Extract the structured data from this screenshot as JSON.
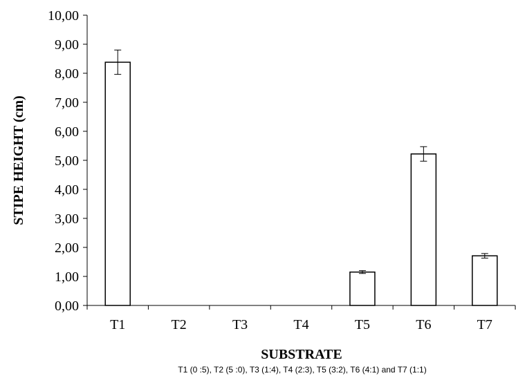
{
  "chart_data": {
    "type": "bar",
    "categories": [
      "T1",
      "T2",
      "T3",
      "T4",
      "T5",
      "T6",
      "T7"
    ],
    "values": [
      8.38,
      0,
      0,
      0,
      1.15,
      5.22,
      1.71
    ],
    "errors": [
      0.42,
      0,
      0,
      0,
      0.05,
      0.25,
      0.08
    ],
    "color": "#ffffff",
    "ylim": [
      0,
      10
    ],
    "yticks": [
      {
        "value": 0,
        "label": "0,00"
      },
      {
        "value": 1,
        "label": "1,00"
      },
      {
        "value": 2,
        "label": "2,00"
      },
      {
        "value": 3,
        "label": "3,00"
      },
      {
        "value": 4,
        "label": "4,00"
      },
      {
        "value": 5,
        "label": "5,00"
      },
      {
        "value": 6,
        "label": "6,00"
      },
      {
        "value": 7,
        "label": "7,00"
      },
      {
        "value": 8,
        "label": "8,00"
      },
      {
        "value": 9,
        "label": "9,00"
      },
      {
        "value": 10,
        "label": "10,00"
      }
    ],
    "ylabel": "STIPE HEIGHT (cm)",
    "xlabel": "SUBSTRATE",
    "note": "T1 (0 :5),  T2 (5 :0), T3 (1:4), T4 (2:3), T5 (3:2), T6 (4:1) and T7 (1:1)",
    "grid": false
  }
}
